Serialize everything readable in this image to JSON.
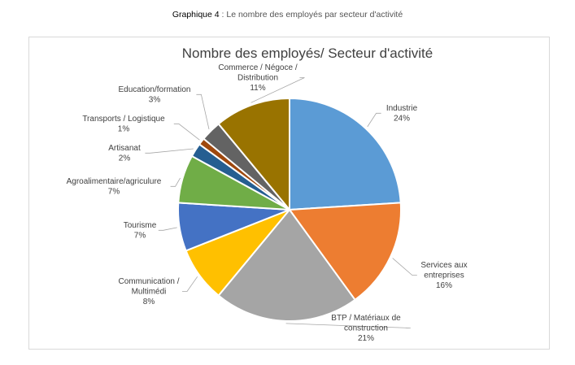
{
  "caption": {
    "label": "Graphique 4",
    "separator": ":",
    "text": "Le nombre des employés par secteur d'activité"
  },
  "chart_data": {
    "type": "pie",
    "title": "Nombre des employés/ Secteur d'activité",
    "slices": [
      {
        "label": "Industrie",
        "value": 24,
        "value_label": "24%",
        "color": "#5B9BD5"
      },
      {
        "label": "Services aux entreprises",
        "value": 16,
        "value_label": "16%",
        "color": "#ED7D31"
      },
      {
        "label": "BTP / Matériaux de construction",
        "value": 21,
        "value_label": "21%",
        "color": "#A5A5A5"
      },
      {
        "label": "Communication / Multimédi",
        "value": 8,
        "value_label": "8%",
        "color": "#FFC000"
      },
      {
        "label": "Tourisme",
        "value": 7,
        "value_label": "7%",
        "color": "#4472C4"
      },
      {
        "label": "Agroalimentaire/agriculure",
        "value": 7,
        "value_label": "7%",
        "color": "#70AD47"
      },
      {
        "label": "Artisanat",
        "value": 2,
        "value_label": "2%",
        "color": "#255E91"
      },
      {
        "label": "Transports / Logistique",
        "value": 1,
        "value_label": "1%",
        "color": "#9E480E"
      },
      {
        "label": "Education/formation",
        "value": 3,
        "value_label": "3%",
        "color": "#636363"
      },
      {
        "label": "Commerce / Négoce / Distribution",
        "value": 11,
        "value_label": "11%",
        "color": "#997300"
      }
    ],
    "label_lines": [
      [
        "Industrie",
        "24%"
      ],
      [
        "Services aux",
        "entreprises",
        "16%"
      ],
      [
        "BTP / Matériaux de",
        "construction",
        "21%"
      ],
      [
        "Communication /",
        "Multimédi",
        "8%"
      ],
      [
        "Tourisme",
        "7%"
      ],
      [
        "Agroalimentaire/agriculure",
        "7%"
      ],
      [
        "Artisanat",
        "2%"
      ],
      [
        "Transports / Logistique",
        "1%"
      ],
      [
        "Education/formation",
        "3%"
      ],
      [
        "Commerce / Négoce /",
        "Distribution",
        "11%"
      ]
    ]
  }
}
